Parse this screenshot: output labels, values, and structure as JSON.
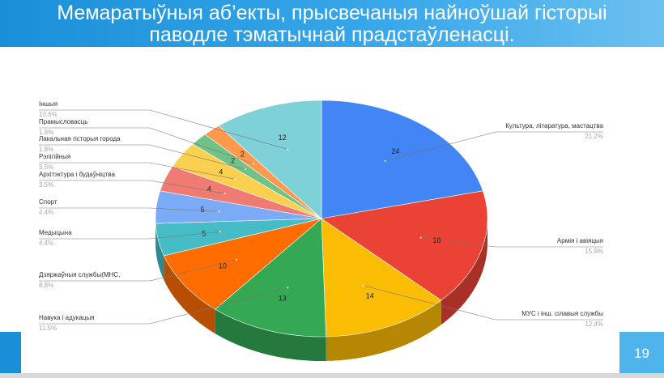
{
  "header": {
    "title_lines": [
      "Мемаратыўныя аб’екты, прысвечаныя найноўшай гісторыі",
      "паводле тэматычнай прадстаўленасці."
    ]
  },
  "chart_data": {
    "type": "pie",
    "three_d": true,
    "categories": [
      "Культура, літаратура, мастацтва",
      "Армія і авіяцыя",
      "МУС і інш. сілавыя службы",
      "Навука і адукацыя",
      "Дзяржаўныя службы(МНС,",
      "Медыцына",
      "Спорт",
      "Архітэктура і будаўніцтва",
      "Рэлігійныя",
      "Лакальная гісторыя города",
      "Прамысловасць",
      "Іншыя"
    ],
    "values": [
      24,
      18,
      14,
      13,
      10,
      5,
      5,
      4,
      4,
      2,
      2,
      12
    ],
    "share_labels": [
      "21.2%",
      "15.9%",
      "12.4%",
      "11.5%",
      "8.8%",
      "4.4%",
      "4.4%",
      "3.5%",
      "3.5%",
      "1.8%",
      "1.8%",
      "10.6%"
    ],
    "colors": [
      "#4285f4",
      "#ea4335",
      "#fbbc04",
      "#34a853",
      "#ff6d01",
      "#46bdc6",
      "#7baaf7",
      "#f07b72",
      "#fcd04f",
      "#71c287",
      "#ff994d",
      "#7ed1d7"
    ]
  },
  "footer": {
    "page_number": "19"
  }
}
